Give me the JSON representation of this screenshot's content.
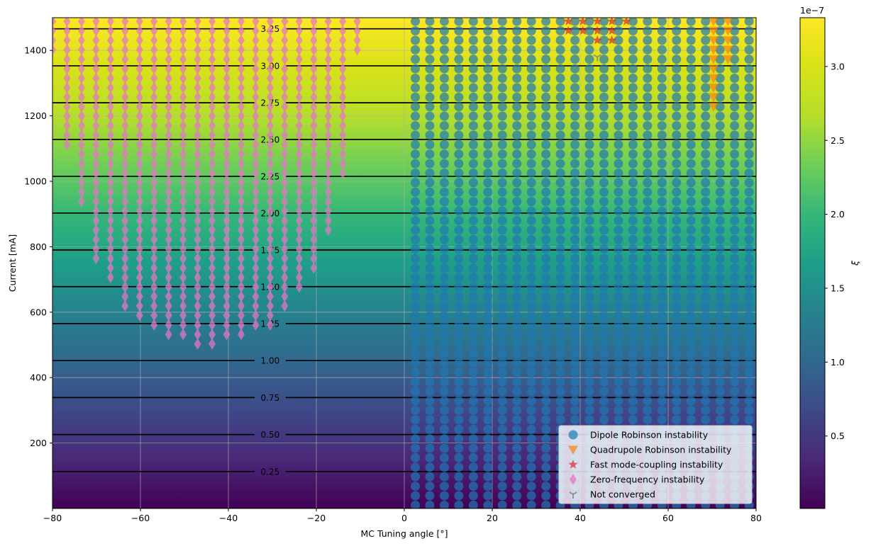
{
  "chart_data": {
    "type": "heatmap",
    "title": "",
    "xlabel": "MC Tuning angle [°]",
    "ylabel": "Current [mA]",
    "xlim": [
      -80,
      80
    ],
    "ylim": [
      0,
      1500
    ],
    "x_ticks": [
      -80,
      -60,
      -40,
      -20,
      0,
      20,
      40,
      60,
      80
    ],
    "x_tick_labels": [
      "−80",
      "−60",
      "−40",
      "−20",
      "0",
      "20",
      "40",
      "60",
      "80"
    ],
    "y_ticks": [
      200,
      400,
      600,
      800,
      1000,
      1200,
      1400
    ],
    "y_tick_labels": [
      "200",
      "400",
      "600",
      "800",
      "1000",
      "1200",
      "1400"
    ],
    "grid": true,
    "legend_position": "lower-right",
    "colormap": "viridis",
    "colorbar": {
      "label": "ξ",
      "exponent_label": "1e−7",
      "range": [
        0.01,
        3.33
      ],
      "ticks": [
        0.5,
        1.0,
        1.5,
        2.0,
        2.5,
        3.0
      ],
      "tick_labels": [
        "0.5",
        "1.0",
        "1.5",
        "2.0",
        "2.5",
        "3.0"
      ]
    },
    "contour_lines": [
      {
        "level": "0.25",
        "current": 113
      },
      {
        "level": "0.50",
        "current": 226
      },
      {
        "level": "0.75",
        "current": 339
      },
      {
        "level": "1.00",
        "current": 452
      },
      {
        "level": "1.25",
        "current": 565
      },
      {
        "level": "1.50",
        "current": 678
      },
      {
        "level": "1.75",
        "current": 790
      },
      {
        "level": "2.00",
        "current": 903
      },
      {
        "level": "2.25",
        "current": 1015
      },
      {
        "level": "2.50",
        "current": 1128
      },
      {
        "level": "2.75",
        "current": 1240
      },
      {
        "level": "3.00",
        "current": 1353
      },
      {
        "level": "3.25",
        "current": 1466
      }
    ],
    "scan_grid": {
      "angle_start": -80,
      "angle_step": 3.3,
      "current_start": 10,
      "current_step": 29
    },
    "series": [
      {
        "name": "Dipole Robinson instability",
        "color": "#1f77b4",
        "marker": "circle",
        "regions": [
          {
            "angle_min": 0,
            "angle_max": 80,
            "current_min": 10,
            "current_max": 1500
          }
        ]
      },
      {
        "name": "Quadrupole Robinson instability",
        "color": "#ff7f0e",
        "marker": "triangle-down",
        "columns": [
          {
            "angle": 70.3,
            "current_min": 1220,
            "current_max": 1500
          },
          {
            "angle": 73.6,
            "current_min": 1350,
            "current_max": 1500
          }
        ]
      },
      {
        "name": "Fast mode-coupling instability",
        "color": "#d62728",
        "marker": "star",
        "columns": [
          {
            "angle": 37.3,
            "current_min": 1440,
            "current_max": 1500
          },
          {
            "angle": 40.6,
            "current_min": 1440,
            "current_max": 1500
          },
          {
            "angle": 43.9,
            "current_min": 1410,
            "current_max": 1500
          },
          {
            "angle": 47.2,
            "current_min": 1410,
            "current_max": 1500
          },
          {
            "angle": 50.5,
            "current_min": 1470,
            "current_max": 1500
          },
          {
            "angle": 53.8,
            "current_min": 1500,
            "current_max": 1500
          }
        ]
      },
      {
        "name": "Zero-frequency instability",
        "color": "#e377c2",
        "marker": "diamond",
        "columns": [
          {
            "angle": -80.0,
            "current_min": 1380,
            "current_max": 1500
          },
          {
            "angle": -76.7,
            "current_min": 1090,
            "current_max": 1500
          },
          {
            "angle": -73.4,
            "current_min": 920,
            "current_max": 1500
          },
          {
            "angle": -70.1,
            "current_min": 760,
            "current_max": 1500
          },
          {
            "angle": -66.8,
            "current_min": 700,
            "current_max": 1500
          },
          {
            "angle": -63.5,
            "current_min": 610,
            "current_max": 1500
          },
          {
            "angle": -60.2,
            "current_min": 580,
            "current_max": 1500
          },
          {
            "angle": -56.9,
            "current_min": 550,
            "current_max": 1500
          },
          {
            "angle": -53.6,
            "current_min": 520,
            "current_max": 1500
          },
          {
            "angle": -50.3,
            "current_min": 520,
            "current_max": 1500
          },
          {
            "angle": -47.0,
            "current_min": 490,
            "current_max": 1500
          },
          {
            "angle": -43.7,
            "current_min": 490,
            "current_max": 1500
          },
          {
            "angle": -40.4,
            "current_min": 520,
            "current_max": 1500
          },
          {
            "angle": -37.1,
            "current_min": 520,
            "current_max": 1500
          },
          {
            "angle": -33.8,
            "current_min": 550,
            "current_max": 1500
          },
          {
            "angle": -30.5,
            "current_min": 550,
            "current_max": 1500
          },
          {
            "angle": -27.2,
            "current_min": 610,
            "current_max": 1500
          },
          {
            "angle": -23.9,
            "current_min": 670,
            "current_max": 1500
          },
          {
            "angle": -20.6,
            "current_min": 730,
            "current_max": 1500
          },
          {
            "angle": -17.3,
            "current_min": 850,
            "current_max": 1500
          },
          {
            "angle": -14.0,
            "current_min": 1010,
            "current_max": 1500
          },
          {
            "angle": -10.7,
            "current_min": 1380,
            "current_max": 1500
          }
        ]
      },
      {
        "name": "Not converged",
        "color": "#7f7f7f",
        "marker": "tri-down",
        "points": [
          {
            "angle": 43.9,
            "current": 1380
          }
        ]
      }
    ]
  }
}
